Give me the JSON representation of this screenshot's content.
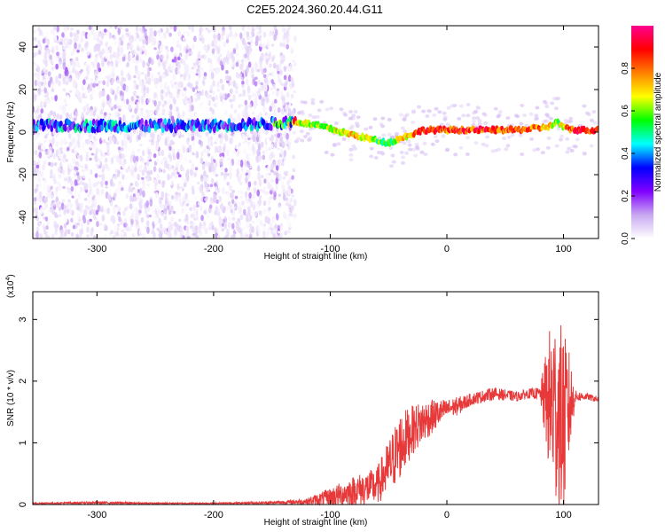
{
  "chart_data": [
    {
      "type": "heatmap",
      "title": "C2E5.2024.360.20.44.G11",
      "xlabel": "Height of straight line (km)",
      "ylabel": "Frequency (Hz)",
      "xlim": [
        -355,
        130
      ],
      "ylim": [
        -50,
        50
      ],
      "xticks": [
        -300,
        -200,
        -100,
        0,
        100
      ],
      "yticks": [
        -40,
        -20,
        0,
        20,
        40
      ],
      "xtick_labels": [
        "-300",
        "-200",
        "-100",
        "0",
        "100"
      ],
      "ytick_labels": [
        "-40",
        "-20",
        "0",
        "20",
        "40"
      ],
      "colorbar": {
        "label": "Normalized spectral amplitude",
        "range": [
          0,
          1
        ],
        "ticks": [
          0.0,
          0.2,
          0.4,
          0.6,
          0.8
        ],
        "tick_labels": [
          "0.0",
          "0.2",
          "0.4",
          "0.6",
          "0.8"
        ],
        "colors": [
          "#ffffff",
          "#c8a8f0",
          "#8000ff",
          "#0000ff",
          "#00ffff",
          "#00ff00",
          "#ffff00",
          "#ff8000",
          "#ff0000",
          "#ff0090"
        ]
      },
      "noise_region_x": [
        -355,
        -130
      ],
      "ridge": {
        "x": [
          -350,
          -300,
          -250,
          -200,
          -150,
          -130,
          -110,
          -90,
          -75,
          -60,
          -50,
          -40,
          -30,
          -20,
          -10,
          0,
          20,
          40,
          60,
          80,
          90,
          95,
          100,
          110,
          130
        ],
        "frequency": [
          3,
          3,
          3,
          3,
          4,
          5,
          3,
          0,
          -2,
          -4,
          -5,
          -3,
          -1,
          1,
          1,
          1,
          1,
          1,
          1,
          2,
          3,
          5,
          2,
          1,
          1
        ],
        "amplitude": [
          0.35,
          0.35,
          0.3,
          0.3,
          0.35,
          0.7,
          0.65,
          0.7,
          0.75,
          0.6,
          0.55,
          0.7,
          0.8,
          0.9,
          0.9,
          0.85,
          0.9,
          0.9,
          0.9,
          0.8,
          0.7,
          0.6,
          0.75,
          0.9,
          0.9
        ]
      }
    },
    {
      "type": "line",
      "xlabel": "Height of straight line (km)",
      "ylabel": "SNR (10 * v/v)",
      "y_multiplier_label": "(x10",
      "y_multiplier_exponent": "4",
      "y_multiplier_close": ")",
      "xlim": [
        -355,
        130
      ],
      "ylim": [
        0,
        3.45
      ],
      "xticks": [
        -300,
        -200,
        -100,
        0,
        100
      ],
      "yticks": [
        0,
        1,
        2,
        3
      ],
      "xtick_labels": [
        "-300",
        "-200",
        "-100",
        "0",
        "100"
      ],
      "ytick_labels": [
        "0",
        "1",
        "2",
        "3"
      ],
      "color": "#e8393a",
      "series": [
        {
          "x": [
            -355,
            -300,
            -250,
            -200,
            -150,
            -120,
            -100,
            -80,
            -60,
            -50,
            -40,
            -30,
            -20,
            -10,
            0,
            10,
            20,
            40,
            60,
            70,
            80,
            85,
            90,
            95,
            100,
            105,
            110,
            120,
            130
          ],
          "y": [
            0.02,
            0.03,
            0.02,
            0.02,
            0.03,
            0.05,
            0.12,
            0.22,
            0.3,
            0.6,
            0.95,
            1.2,
            1.35,
            1.45,
            1.55,
            1.6,
            1.7,
            1.8,
            1.75,
            1.8,
            1.8,
            1.7,
            1.6,
            1.5,
            1.3,
            1.6,
            1.75,
            1.75,
            1.7
          ],
          "noise": [
            0.01,
            0.02,
            0.01,
            0.01,
            0.02,
            0.05,
            0.15,
            0.25,
            0.3,
            0.45,
            0.55,
            0.4,
            0.35,
            0.25,
            0.15,
            0.15,
            0.1,
            0.1,
            0.08,
            0.08,
            0.1,
            0.8,
            1.5,
            1.6,
            1.5,
            0.9,
            0.1,
            0.05,
            0.05
          ]
        }
      ]
    }
  ]
}
